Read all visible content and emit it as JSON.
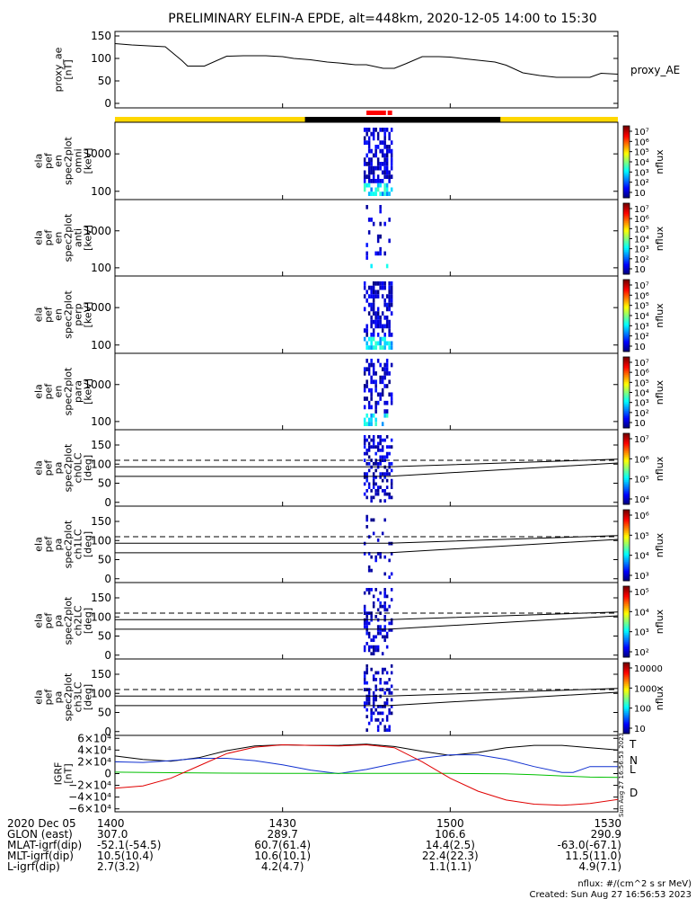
{
  "title": "PRELIMINARY ELFIN-A EPDE, alt=448km, 2020-12-05 14:00 to 15:30",
  "colors": {
    "line": "#000000",
    "sun_bar": "#ffd700",
    "shadow_bar": "#000000",
    "science_zone": "#ff0000",
    "igrf_T": "#000000",
    "igrf_N": "#1030d0",
    "igrf_L": "#00c000",
    "igrf_D": "#e00000"
  },
  "chart_data": [
    {
      "type": "line",
      "name": "proxy_ae",
      "ylabel_lines": [
        "proxy_ae",
        "[nT]"
      ],
      "right_label": "proxy_AE",
      "ylim": [
        -10,
        160
      ],
      "yticks": [
        "150",
        "100",
        "50",
        "0"
      ],
      "ytick_values": [
        150,
        100,
        50,
        0
      ],
      "x": [
        1400,
        1403,
        1406,
        1409,
        1412,
        1413,
        1416,
        1420,
        1423,
        1427,
        1430,
        1432,
        1435,
        1438,
        1440,
        1443,
        1445,
        1448,
        1450,
        1452,
        1455,
        1458,
        1500,
        1502,
        1505,
        1508,
        1510,
        1513,
        1516,
        1519,
        1522,
        1525,
        1527,
        1530
      ],
      "y": [
        133,
        130,
        128,
        126,
        95,
        83,
        83,
        105,
        106,
        106,
        104,
        100,
        97,
        92,
        90,
        86,
        86,
        78,
        78,
        88,
        104,
        104,
        103,
        100,
        96,
        92,
        85,
        68,
        62,
        58,
        58,
        58,
        67,
        65
      ]
    },
    {
      "type": "heatmap",
      "name": "omni",
      "ylabel_lines": [
        "ela",
        "pef",
        "en",
        "spec2plot",
        "omni",
        "[keV]"
      ],
      "yscale": "log",
      "ylim": [
        60,
        7000
      ],
      "yticks": [
        "1000",
        "100"
      ],
      "ytick_values": [
        1000,
        100
      ],
      "colorbar": {
        "label": "nflux",
        "ticks": [
          "10",
          "10²",
          "10³",
          "10⁴",
          "10⁵",
          "10⁶",
          "10⁷"
        ],
        "range": [
          1,
          7
        ]
      }
    },
    {
      "type": "heatmap",
      "name": "anti",
      "ylabel_lines": [
        "ela",
        "pef",
        "en",
        "spec2plot",
        "anti",
        "[keV]"
      ],
      "yscale": "log",
      "ylim": [
        60,
        7000
      ],
      "yticks": [
        "1000",
        "100"
      ],
      "ytick_values": [
        1000,
        100
      ],
      "colorbar": {
        "label": "nflux",
        "ticks": [
          "10",
          "10²",
          "10³",
          "10⁴",
          "10⁵",
          "10⁶",
          "10⁷"
        ],
        "range": [
          1,
          7
        ]
      }
    },
    {
      "type": "heatmap",
      "name": "perp",
      "ylabel_lines": [
        "ela",
        "pef",
        "en",
        "spec2plot",
        "perp",
        "[keV]"
      ],
      "yscale": "log",
      "ylim": [
        60,
        7000
      ],
      "yticks": [
        "1000",
        "100"
      ],
      "ytick_values": [
        1000,
        100
      ],
      "colorbar": {
        "label": "nflux",
        "ticks": [
          "10",
          "10²",
          "10³",
          "10⁴",
          "10⁵",
          "10⁶",
          "10⁷"
        ],
        "range": [
          1,
          7
        ]
      }
    },
    {
      "type": "heatmap",
      "name": "para",
      "ylabel_lines": [
        "ela",
        "pef",
        "en",
        "spec2plot",
        "para",
        "[keV]"
      ],
      "yscale": "log",
      "ylim": [
        60,
        7000
      ],
      "yticks": [
        "1000",
        "100"
      ],
      "ytick_values": [
        1000,
        100
      ],
      "colorbar": {
        "label": "nflux",
        "ticks": [
          "10",
          "10²",
          "10³",
          "10⁴",
          "10⁵",
          "10⁶",
          "10⁷"
        ],
        "range": [
          1,
          7
        ]
      }
    },
    {
      "type": "heatmap",
      "name": "ch0LC",
      "ylabel_lines": [
        "ela",
        "pef",
        "pa",
        "spec2plot",
        "ch0LC",
        "[deg]"
      ],
      "ylim": [
        -10,
        190
      ],
      "yticks": [
        "150",
        "100",
        "50",
        "0"
      ],
      "ytick_values": [
        150,
        100,
        50,
        0
      ],
      "colorbar": {
        "label": "nflux",
        "ticks": [
          "10⁴",
          "10⁵",
          "10⁶",
          "10⁷"
        ],
        "range": [
          4,
          7
        ]
      }
    },
    {
      "type": "heatmap",
      "name": "ch1LC",
      "ylabel_lines": [
        "ela",
        "pef",
        "pa",
        "spec2plot",
        "ch1LC",
        "[deg]"
      ],
      "ylim": [
        -10,
        190
      ],
      "yticks": [
        "150",
        "100",
        "50",
        "0"
      ],
      "ytick_values": [
        150,
        100,
        50,
        0
      ],
      "colorbar": {
        "label": "nflux",
        "ticks": [
          "10³",
          "10⁴",
          "10⁵",
          "10⁶"
        ],
        "range": [
          3,
          6
        ]
      }
    },
    {
      "type": "heatmap",
      "name": "ch2LC",
      "ylabel_lines": [
        "ela",
        "pef",
        "pa",
        "spec2plot",
        "ch2LC",
        "[deg]"
      ],
      "ylim": [
        -10,
        190
      ],
      "yticks": [
        "150",
        "100",
        "50",
        "0"
      ],
      "ytick_values": [
        150,
        100,
        50,
        0
      ],
      "colorbar": {
        "label": "nflux",
        "ticks": [
          "10²",
          "10³",
          "10⁴",
          "10⁵"
        ],
        "range": [
          2,
          5
        ]
      }
    },
    {
      "type": "heatmap",
      "name": "ch3LC",
      "ylabel_lines": [
        "ela",
        "pef",
        "pa",
        "spec2plot",
        "ch3LC",
        "[deg]"
      ],
      "ylim": [
        -10,
        190
      ],
      "yticks": [
        "150",
        "100",
        "50",
        "0"
      ],
      "ytick_values": [
        150,
        100,
        50,
        0
      ],
      "colorbar": {
        "label": "nflux",
        "ticks": [
          "10",
          "100",
          "1000",
          "10000"
        ],
        "range": [
          1,
          4
        ]
      }
    },
    {
      "type": "line",
      "name": "IGRF",
      "ylabel_lines": [
        "IGRF",
        "[nT]"
      ],
      "ylim": [
        -65000,
        65000
      ],
      "yticks": [
        "6×10⁴",
        "4×10⁴",
        "2×10⁴",
        "0",
        "−2×10⁴",
        "−4×10⁴",
        "−6×10⁴"
      ],
      "ytick_values": [
        60000,
        40000,
        20000,
        0,
        -20000,
        -40000,
        -60000
      ],
      "legend": [
        "T",
        "N",
        "L",
        "D"
      ],
      "side_stamp": "Sun Aug 27 16:56:53 2023",
      "series": [
        {
          "name": "T",
          "x": [
            1400,
            1405,
            1410,
            1415,
            1420,
            1425,
            1430,
            1435,
            1440,
            1445,
            1450,
            1455,
            1500,
            1505,
            1510,
            1515,
            1520,
            1525,
            1530
          ],
          "y": [
            30000,
            24000,
            21000,
            27000,
            39000,
            47000,
            49000,
            48000,
            48000,
            50000,
            46000,
            38000,
            31000,
            36000,
            44000,
            48000,
            48000,
            44000,
            40000
          ]
        },
        {
          "name": "N",
          "x": [
            1400,
            1405,
            1410,
            1415,
            1420,
            1425,
            1430,
            1435,
            1440,
            1445,
            1450,
            1455,
            1500,
            1505,
            1510,
            1515,
            1520,
            1522,
            1525,
            1530
          ],
          "y": [
            20000,
            19000,
            22000,
            26000,
            26000,
            22000,
            15000,
            6000,
            0,
            7000,
            17000,
            26000,
            32000,
            32000,
            24000,
            12000,
            2000,
            2000,
            12000,
            12000
          ]
        },
        {
          "name": "L",
          "x": [
            1400,
            1410,
            1420,
            1430,
            1440,
            1450,
            1500,
            1510,
            1515,
            1520,
            1525,
            1530
          ],
          "y": [
            2500,
            1500,
            800,
            300,
            500,
            400,
            300,
            -500,
            -2000,
            -4000,
            -6000,
            -6500
          ]
        },
        {
          "name": "D",
          "x": [
            1400,
            1405,
            1410,
            1415,
            1420,
            1425,
            1430,
            1435,
            1440,
            1445,
            1450,
            1455,
            1500,
            1505,
            1510,
            1515,
            1520,
            1525,
            1530
          ],
          "y": [
            -25000,
            -21000,
            -8000,
            13000,
            34000,
            45000,
            49000,
            48000,
            47000,
            49000,
            44000,
            20000,
            -8000,
            -30000,
            -45000,
            -52000,
            -54000,
            -51000,
            -44000
          ]
        }
      ]
    }
  ],
  "axis_footer": {
    "rows": [
      {
        "label": "2020 Dec 05",
        "values": [
          "1400",
          "1430",
          "1500",
          "1530"
        ]
      },
      {
        "label": "GLON (east)",
        "values": [
          "307.0",
          "289.7",
          "106.6",
          "290.9"
        ]
      },
      {
        "label": "MLAT-igrf(dip)",
        "values": [
          "-52.1(-54.5)",
          "60.7(61.4)",
          "14.4(2.5)",
          "-63.0(-67.1)"
        ]
      },
      {
        "label": "MLT-igrf(dip)",
        "values": [
          "10.5(10.4)",
          "10.6(10.1)",
          "22.4(22.3)",
          "11.5(11.0)"
        ]
      },
      {
        "label": "L-igrf(dip)",
        "values": [
          "2.7(3.2)",
          "4.2(4.7)",
          "1.1(1.1)",
          "4.9(7.1)"
        ]
      }
    ],
    "tick_times": [
      1400,
      1430,
      1500,
      1530
    ]
  },
  "footer": {
    "units_note": "nflux: #/(cm^2 s sr MeV)",
    "created": "Created: Sun Aug 27 16:56:53 2023"
  }
}
